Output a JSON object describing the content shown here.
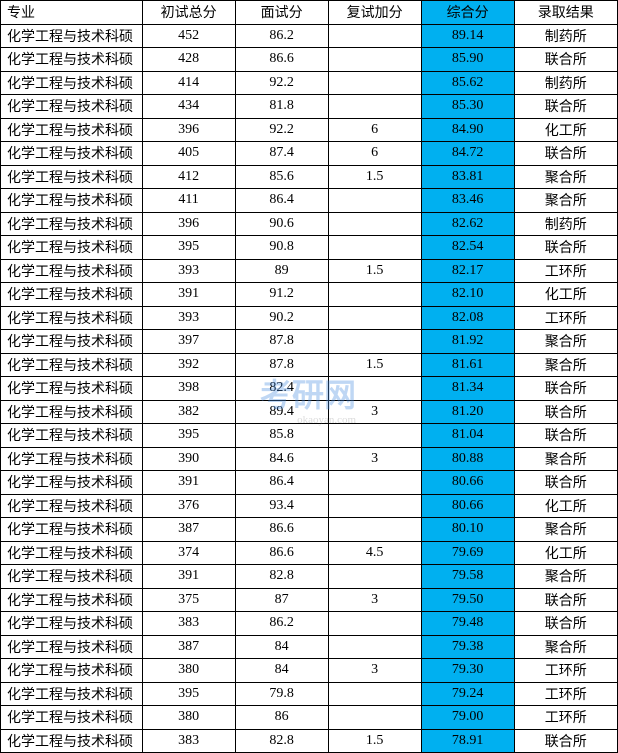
{
  "table": {
    "headers": [
      "专业",
      "初试总分",
      "面试分",
      "复试加分",
      "综合分",
      "录取结果"
    ],
    "highlight_column_index": 4,
    "highlight_bg": "#00b0f0",
    "rows": [
      [
        "化学工程与技术科硕",
        "452",
        "86.2",
        "",
        "89.14",
        "制药所"
      ],
      [
        "化学工程与技术科硕",
        "428",
        "86.6",
        "",
        "85.90",
        "联合所"
      ],
      [
        "化学工程与技术科硕",
        "414",
        "92.2",
        "",
        "85.62",
        "制药所"
      ],
      [
        "化学工程与技术科硕",
        "434",
        "81.8",
        "",
        "85.30",
        "联合所"
      ],
      [
        "化学工程与技术科硕",
        "396",
        "92.2",
        "6",
        "84.90",
        "化工所"
      ],
      [
        "化学工程与技术科硕",
        "405",
        "87.4",
        "6",
        "84.72",
        "联合所"
      ],
      [
        "化学工程与技术科硕",
        "412",
        "85.6",
        "1.5",
        "83.81",
        "聚合所"
      ],
      [
        "化学工程与技术科硕",
        "411",
        "86.4",
        "",
        "83.46",
        "聚合所"
      ],
      [
        "化学工程与技术科硕",
        "396",
        "90.6",
        "",
        "82.62",
        "制药所"
      ],
      [
        "化学工程与技术科硕",
        "395",
        "90.8",
        "",
        "82.54",
        "联合所"
      ],
      [
        "化学工程与技术科硕",
        "393",
        "89",
        "1.5",
        "82.17",
        "工环所"
      ],
      [
        "化学工程与技术科硕",
        "391",
        "91.2",
        "",
        "82.10",
        "化工所"
      ],
      [
        "化学工程与技术科硕",
        "393",
        "90.2",
        "",
        "82.08",
        "工环所"
      ],
      [
        "化学工程与技术科硕",
        "397",
        "87.8",
        "",
        "81.92",
        "聚合所"
      ],
      [
        "化学工程与技术科硕",
        "392",
        "87.8",
        "1.5",
        "81.61",
        "聚合所"
      ],
      [
        "化学工程与技术科硕",
        "398",
        "82.4",
        "",
        "81.34",
        "联合所"
      ],
      [
        "化学工程与技术科硕",
        "382",
        "89.4",
        "3",
        "81.20",
        "联合所"
      ],
      [
        "化学工程与技术科硕",
        "395",
        "85.8",
        "",
        "81.04",
        "联合所"
      ],
      [
        "化学工程与技术科硕",
        "390",
        "84.6",
        "3",
        "80.88",
        "聚合所"
      ],
      [
        "化学工程与技术科硕",
        "391",
        "86.4",
        "",
        "80.66",
        "联合所"
      ],
      [
        "化学工程与技术科硕",
        "376",
        "93.4",
        "",
        "80.66",
        "化工所"
      ],
      [
        "化学工程与技术科硕",
        "387",
        "86.6",
        "",
        "80.10",
        "聚合所"
      ],
      [
        "化学工程与技术科硕",
        "374",
        "86.6",
        "4.5",
        "79.69",
        "化工所"
      ],
      [
        "化学工程与技术科硕",
        "391",
        "82.8",
        "",
        "79.58",
        "聚合所"
      ],
      [
        "化学工程与技术科硕",
        "375",
        "87",
        "3",
        "79.50",
        "联合所"
      ],
      [
        "化学工程与技术科硕",
        "383",
        "86.2",
        "",
        "79.48",
        "联合所"
      ],
      [
        "化学工程与技术科硕",
        "387",
        "84",
        "",
        "79.38",
        "聚合所"
      ],
      [
        "化学工程与技术科硕",
        "380",
        "84",
        "3",
        "79.30",
        "工环所"
      ],
      [
        "化学工程与技术科硕",
        "395",
        "79.8",
        "",
        "79.24",
        "工环所"
      ],
      [
        "化学工程与技术科硕",
        "380",
        "86",
        "",
        "79.00",
        "工环所"
      ],
      [
        "化学工程与技术科硕",
        "383",
        "82.8",
        "1.5",
        "78.91",
        "联合所"
      ]
    ]
  },
  "watermark": {
    "main": "考研网",
    "sub": "okaoyan.com"
  }
}
